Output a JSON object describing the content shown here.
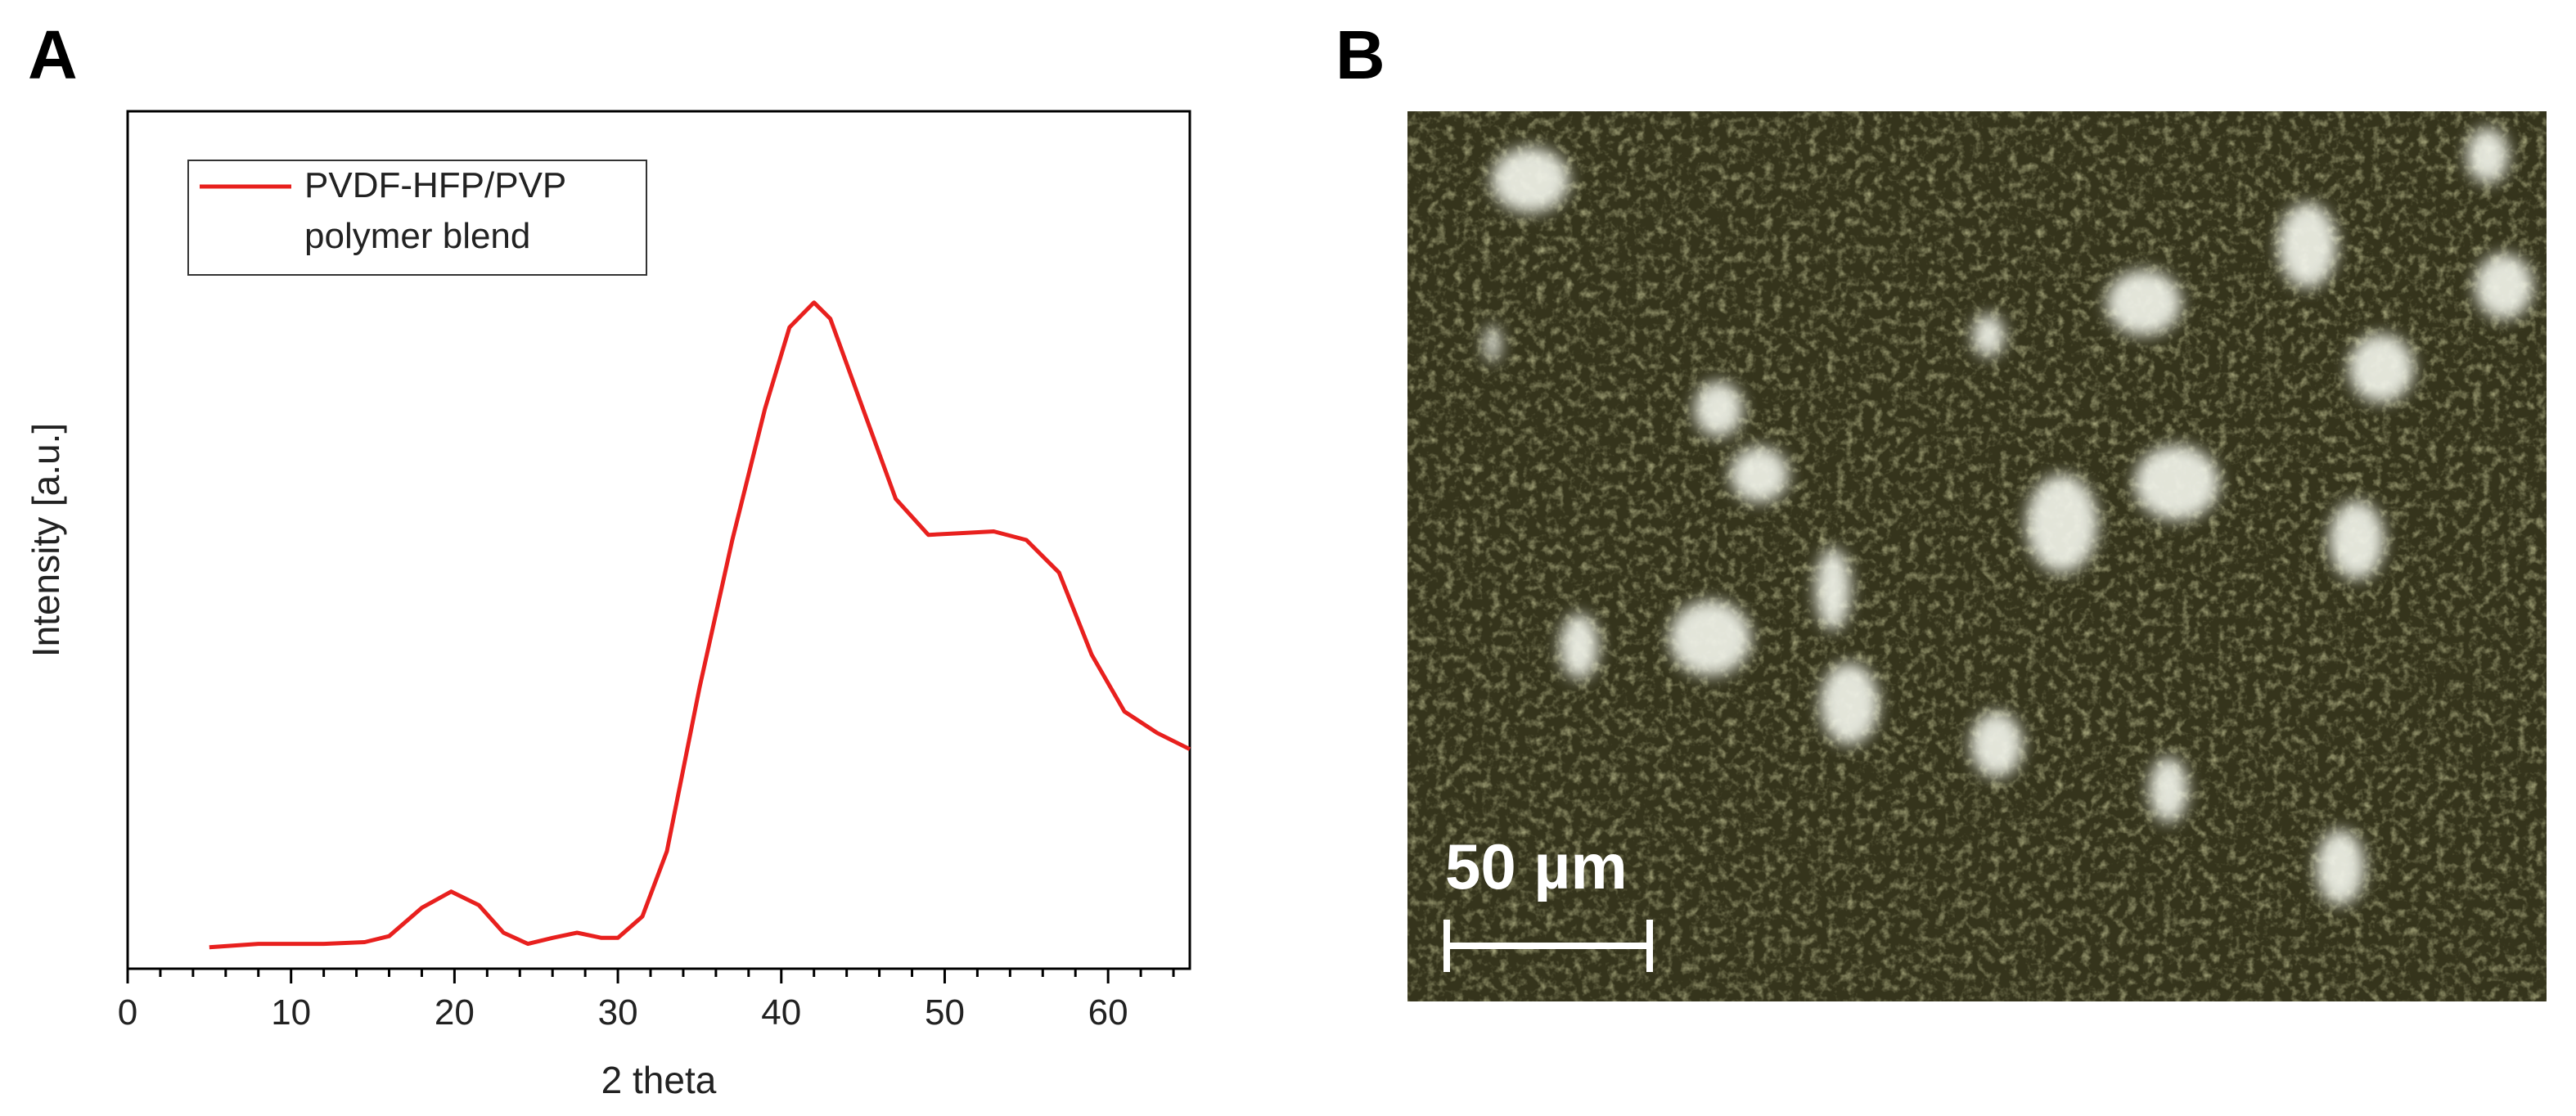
{
  "panel_labels": [
    "A",
    "B"
  ],
  "scale_bar": "50 µm",
  "chart_data": {
    "type": "line",
    "xlabel": "2 theta",
    "ylabel": "Intensity [a.u.]",
    "x": [
      5,
      8,
      12,
      14.5,
      16,
      18,
      19.8,
      21.5,
      23,
      24.5,
      26,
      27.5,
      29,
      30,
      31.5,
      33,
      35,
      37,
      39,
      40.5,
      42,
      43,
      45,
      47,
      49,
      51,
      53,
      55,
      57,
      59,
      61,
      63,
      65
    ],
    "series": [
      {
        "name": "PVDF-HFP/PVP polymer blend",
        "color": "#e8201e",
        "values": [
          2.5,
          2.9,
          2.9,
          3.1,
          3.8,
          7.1,
          9.0,
          7.4,
          4.2,
          2.9,
          3.6,
          4.2,
          3.6,
          3.6,
          6.1,
          13.7,
          32.8,
          50,
          65.3,
          74.8,
          77.7,
          75.8,
          65.3,
          54.8,
          50.6,
          50.8,
          51,
          50,
          46.2,
          36.6,
          30,
          27.5,
          25.6
        ]
      }
    ],
    "xlim": [
      0,
      65
    ],
    "ylim": [
      0,
      100
    ],
    "xticks": [
      0,
      10,
      20,
      30,
      40,
      50,
      60
    ],
    "xminorticks": [
      2,
      4,
      6,
      8,
      12,
      14,
      16,
      18,
      22,
      24,
      26,
      28,
      32,
      34,
      36,
      38,
      42,
      44,
      46,
      48,
      52,
      54,
      56,
      58,
      62,
      64
    ],
    "legend": "upper left"
  }
}
